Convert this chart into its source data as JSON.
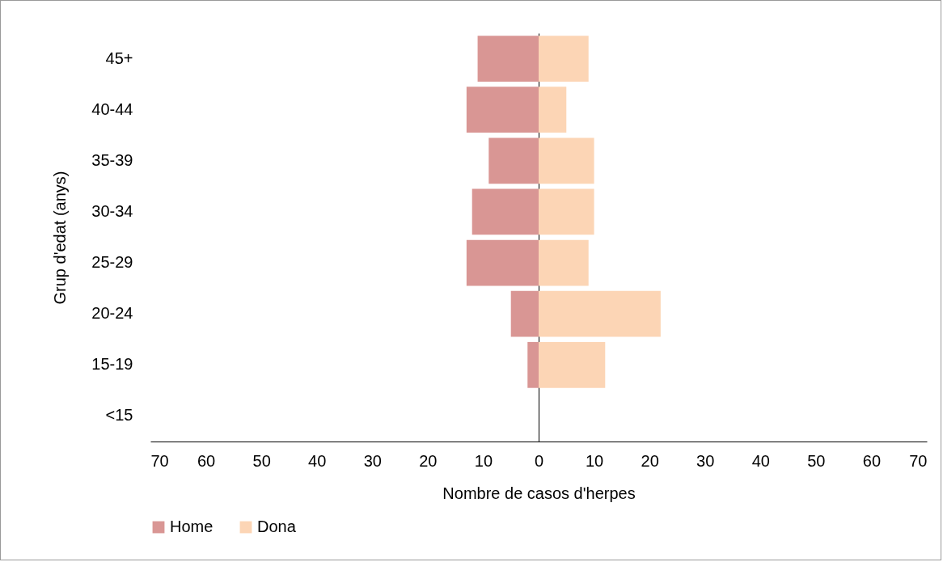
{
  "chart_data": {
    "type": "bar",
    "orientation": "horizontal",
    "xlabel": "Nombre de casos d'herpes",
    "ylabel": "Grup d'edat  (anys)",
    "categories": [
      "45+",
      "40-44",
      "35-39",
      "30-34",
      "25-29",
      "20-24",
      "15-19",
      "<15"
    ],
    "series": [
      {
        "name": "Home",
        "color": "#d99694",
        "values": [
          -11,
          -13,
          -9,
          -12,
          -13,
          -5,
          -2,
          0
        ]
      },
      {
        "name": "Dona",
        "color": "#fcd5b5",
        "values": [
          9,
          5,
          10,
          10,
          9,
          22,
          12,
          0
        ]
      }
    ],
    "xlim": [
      -70,
      70
    ],
    "xticks": [
      {
        "value": -70,
        "label": "70"
      },
      {
        "value": -60,
        "label": "60"
      },
      {
        "value": -50,
        "label": "50"
      },
      {
        "value": -40,
        "label": "40"
      },
      {
        "value": -30,
        "label": "30"
      },
      {
        "value": -20,
        "label": "20"
      },
      {
        "value": -10,
        "label": "10"
      },
      0,
      10,
      20,
      30,
      40,
      50,
      60,
      70
    ],
    "stacked": true,
    "legend": "bottom"
  }
}
